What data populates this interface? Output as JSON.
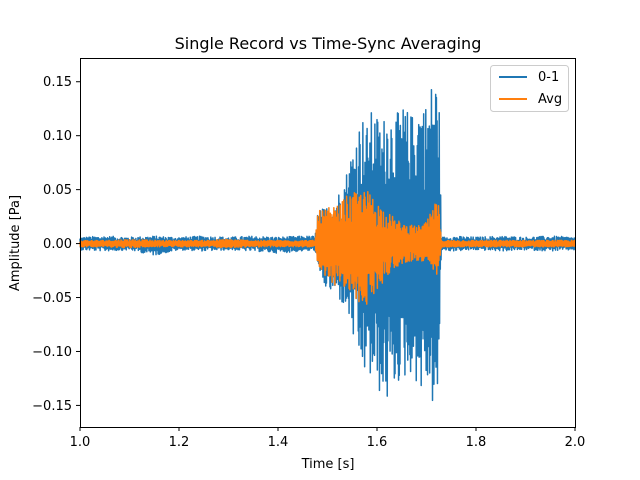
{
  "chart_data": {
    "type": "line",
    "title": "Single Record vs Time-Sync Averaging",
    "xlabel": "Time [s]",
    "ylabel": "Amplitude [Pa]",
    "xlim": [
      1.0,
      2.0
    ],
    "ylim": [
      -0.17,
      0.172
    ],
    "xticks": [
      1.0,
      1.2,
      1.4,
      1.6,
      1.8,
      2.0
    ],
    "xtick_labels": [
      "1.0",
      "1.2",
      "1.4",
      "1.6",
      "1.8",
      "2.0"
    ],
    "yticks": [
      -0.15,
      -0.1,
      -0.05,
      0.0,
      0.05,
      0.1,
      0.15
    ],
    "ytick_labels": [
      "−0.15",
      "−0.10",
      "−0.05",
      "0.00",
      "0.05",
      "0.10",
      "0.15"
    ],
    "grid": false,
    "legend_position": "top-right",
    "series": [
      {
        "name": "0-1",
        "color": "#1f77b4",
        "envelope_x": [
          1.0,
          1.05,
          1.1,
          1.15,
          1.2,
          1.25,
          1.3,
          1.35,
          1.4,
          1.45,
          1.475,
          1.48,
          1.5,
          1.52,
          1.54,
          1.55,
          1.56,
          1.57,
          1.58,
          1.59,
          1.6,
          1.61,
          1.62,
          1.63,
          1.64,
          1.65,
          1.66,
          1.67,
          1.68,
          1.69,
          1.7,
          1.71,
          1.72,
          1.725,
          1.73,
          1.75,
          1.8,
          1.85,
          1.9,
          1.95,
          2.0
        ],
        "envelope_upper": [
          0.006,
          0.007,
          0.006,
          0.007,
          0.006,
          0.007,
          0.006,
          0.007,
          0.006,
          0.007,
          0.007,
          0.03,
          0.035,
          0.045,
          0.07,
          0.09,
          0.11,
          0.12,
          0.11,
          0.125,
          0.12,
          0.11,
          0.13,
          0.125,
          0.12,
          0.13,
          0.125,
          0.12,
          0.13,
          0.14,
          0.13,
          0.15,
          0.157,
          0.15,
          0.006,
          0.007,
          0.006,
          0.007,
          0.006,
          0.007,
          0.006
        ],
        "envelope_lower": [
          -0.006,
          -0.007,
          -0.006,
          -0.011,
          -0.006,
          -0.007,
          -0.006,
          -0.007,
          -0.009,
          -0.007,
          -0.007,
          -0.03,
          -0.045,
          -0.05,
          -0.065,
          -0.085,
          -0.11,
          -0.12,
          -0.125,
          -0.13,
          -0.135,
          -0.145,
          -0.15,
          -0.14,
          -0.13,
          -0.13,
          -0.125,
          -0.12,
          -0.13,
          -0.14,
          -0.13,
          -0.15,
          -0.153,
          -0.15,
          -0.006,
          -0.007,
          -0.006,
          -0.007,
          -0.006,
          -0.007,
          -0.006
        ]
      },
      {
        "name": "Avg",
        "color": "#ff7f0e",
        "envelope_x": [
          1.0,
          1.05,
          1.1,
          1.15,
          1.2,
          1.25,
          1.3,
          1.35,
          1.4,
          1.45,
          1.475,
          1.48,
          1.5,
          1.52,
          1.54,
          1.56,
          1.58,
          1.6,
          1.62,
          1.64,
          1.66,
          1.68,
          1.7,
          1.71,
          1.72,
          1.725,
          1.73,
          1.75,
          1.8,
          1.85,
          1.9,
          1.95,
          2.0
        ],
        "envelope_upper": [
          0.003,
          0.003,
          0.004,
          0.003,
          0.003,
          0.003,
          0.004,
          0.003,
          0.003,
          0.003,
          0.003,
          0.03,
          0.033,
          0.035,
          0.045,
          0.048,
          0.05,
          0.04,
          0.03,
          0.022,
          0.018,
          0.016,
          0.02,
          0.03,
          0.04,
          0.035,
          0.003,
          0.003,
          0.003,
          0.003,
          0.003,
          0.003,
          0.003
        ],
        "envelope_lower": [
          -0.003,
          -0.003,
          -0.004,
          -0.003,
          -0.003,
          -0.003,
          -0.004,
          -0.003,
          -0.003,
          -0.003,
          -0.003,
          -0.03,
          -0.035,
          -0.04,
          -0.045,
          -0.055,
          -0.058,
          -0.045,
          -0.03,
          -0.022,
          -0.017,
          -0.016,
          -0.02,
          -0.025,
          -0.03,
          -0.03,
          -0.003,
          -0.003,
          -0.003,
          -0.003,
          -0.003,
          -0.003,
          -0.003
        ]
      }
    ]
  }
}
